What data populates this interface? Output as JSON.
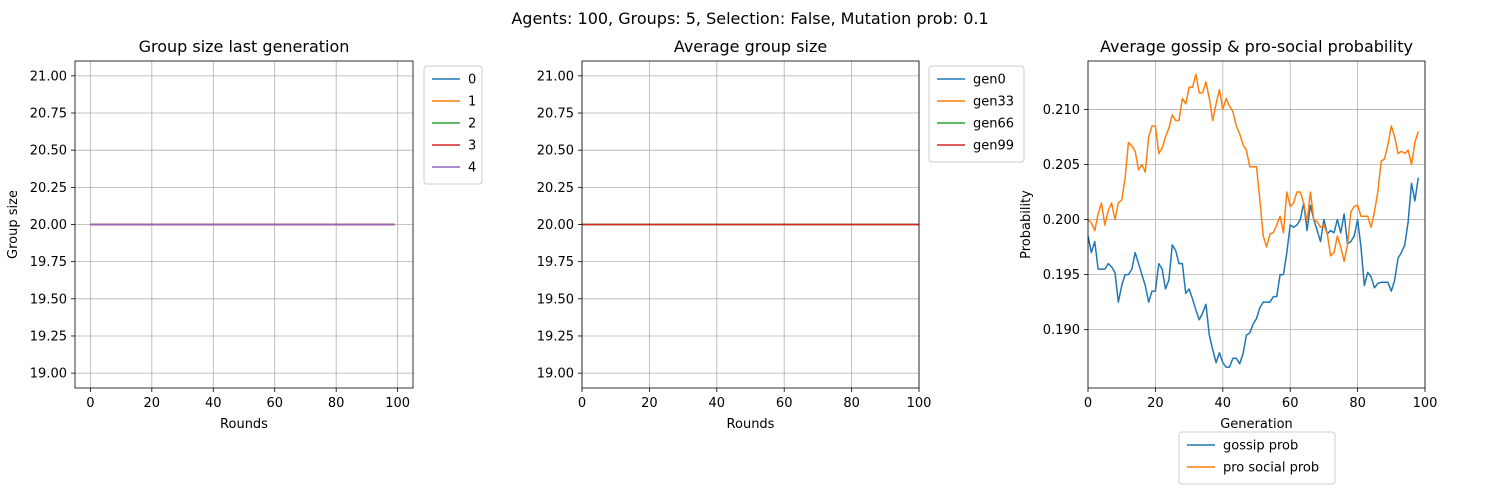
{
  "suptitle": "Agents: 100, Groups: 5, Selection: False, Mutation prob: 0.1",
  "colors": {
    "c0": "#1f77b4",
    "c1": "#ff7f0e",
    "c2": "#2ca02c",
    "c3": "#d62728",
    "c4": "#9467bd"
  },
  "chart_data": [
    {
      "type": "line",
      "title": "Group size last generation",
      "xlabel": "Rounds",
      "ylabel": "Group size",
      "xlim": [
        -5,
        105
      ],
      "ylim": [
        18.9,
        21.1
      ],
      "xticks": [
        0,
        20,
        40,
        60,
        80,
        100
      ],
      "yticks": [
        19.0,
        19.25,
        19.5,
        19.75,
        20.0,
        20.25,
        20.5,
        20.75,
        21.0
      ],
      "grid": true,
      "legend": "outside-right",
      "series": [
        {
          "name": "0",
          "x": [
            0,
            99
          ],
          "values": [
            20,
            20
          ]
        },
        {
          "name": "1",
          "x": [
            0,
            99
          ],
          "values": [
            20,
            20
          ]
        },
        {
          "name": "2",
          "x": [
            0,
            99
          ],
          "values": [
            20,
            20
          ]
        },
        {
          "name": "3",
          "x": [
            0,
            99
          ],
          "values": [
            20,
            20
          ]
        },
        {
          "name": "4",
          "x": [
            0,
            99
          ],
          "values": [
            20,
            20
          ]
        }
      ]
    },
    {
      "type": "line",
      "title": "Average group size",
      "xlabel": "Rounds",
      "ylabel": "",
      "xlim": [
        0,
        100
      ],
      "ylim": [
        18.9,
        21.1
      ],
      "xticks": [
        0,
        20,
        40,
        60,
        80,
        100
      ],
      "yticks": [
        19.0,
        19.25,
        19.5,
        19.75,
        20.0,
        20.25,
        20.5,
        20.75,
        21.0
      ],
      "grid": true,
      "legend": "outside-right",
      "series": [
        {
          "name": "gen0",
          "x": [
            0,
            100
          ],
          "values": [
            20,
            20
          ]
        },
        {
          "name": "gen33",
          "x": [
            0,
            100
          ],
          "values": [
            20,
            20
          ]
        },
        {
          "name": "gen66",
          "x": [
            0,
            100
          ],
          "values": [
            20,
            20
          ]
        },
        {
          "name": "gen99",
          "x": [
            0,
            100
          ],
          "values": [
            20,
            20
          ]
        }
      ]
    },
    {
      "type": "line",
      "title": "Average gossip & pro-social probability",
      "xlabel": "Generation",
      "ylabel": "Probability",
      "xlim": [
        0,
        100
      ],
      "ylim": [
        0.1847,
        0.2144
      ],
      "xticks": [
        0,
        20,
        40,
        60,
        80,
        100
      ],
      "yticks": [
        0.19,
        0.195,
        0.2,
        0.205,
        0.21
      ],
      "grid": true,
      "legend": "below",
      "series": [
        {
          "name": "gossip prob",
          "values": [
            0.1985,
            0.197,
            0.198,
            0.1955,
            0.1955,
            0.1955,
            0.196,
            0.1957,
            0.1952,
            0.1925,
            0.194,
            0.195,
            0.195,
            0.1955,
            0.197,
            0.196,
            0.195,
            0.194,
            0.1925,
            0.1935,
            0.1935,
            0.196,
            0.1955,
            0.1937,
            0.1945,
            0.1977,
            0.1972,
            0.196,
            0.196,
            0.1933,
            0.1937,
            0.1928,
            0.1918,
            0.1909,
            0.1915,
            0.1923,
            0.1895,
            0.1882,
            0.187,
            0.1879,
            0.187,
            0.1866,
            0.1866,
            0.1874,
            0.1874,
            0.1869,
            0.1878,
            0.1895,
            0.1897,
            0.1905,
            0.191,
            0.192,
            0.1925,
            0.1925,
            0.1925,
            0.193,
            0.193,
            0.195,
            0.195,
            0.197,
            0.1995,
            0.1993,
            0.1995,
            0.2,
            0.2015,
            0.199,
            0.2013,
            0.2,
            0.199,
            0.198,
            0.2,
            0.1987,
            0.199,
            0.1988,
            0.2,
            0.1988,
            0.2005,
            0.1978,
            0.198,
            0.1985,
            0.2,
            0.1975,
            0.194,
            0.1952,
            0.1948,
            0.1938,
            0.1942,
            0.1943,
            0.1943,
            0.1943,
            0.1935,
            0.1945,
            0.1965,
            0.197,
            0.1977,
            0.1998,
            0.2033,
            0.2017,
            0.2038
          ]
        },
        {
          "name": "pro social prob",
          "values": [
            0.2,
            0.1997,
            0.199,
            0.2005,
            0.2015,
            0.1995,
            0.2008,
            0.2015,
            0.2,
            0.2015,
            0.2018,
            0.2037,
            0.207,
            0.2067,
            0.2062,
            0.2045,
            0.205,
            0.2043,
            0.2075,
            0.2085,
            0.2085,
            0.206,
            0.2065,
            0.2075,
            0.2083,
            0.2095,
            0.209,
            0.209,
            0.211,
            0.2105,
            0.212,
            0.212,
            0.2132,
            0.2115,
            0.2115,
            0.2125,
            0.211,
            0.209,
            0.2105,
            0.2118,
            0.21,
            0.211,
            0.2103,
            0.2098,
            0.2085,
            0.2078,
            0.2068,
            0.2063,
            0.2048,
            0.2048,
            0.2048,
            0.2018,
            0.1985,
            0.1975,
            0.1987,
            0.1988,
            0.1995,
            0.2003,
            0.1988,
            0.2025,
            0.2012,
            0.2015,
            0.2025,
            0.2025,
            0.2015,
            0.1998,
            0.2025,
            0.2,
            0.1998,
            0.1993,
            0.1995,
            0.1987,
            0.1967,
            0.197,
            0.1985,
            0.1975,
            0.1962,
            0.1977,
            0.2007,
            0.2012,
            0.2013,
            0.2003,
            0.2003,
            0.2003,
            0.1993,
            0.2007,
            0.2025,
            0.2053,
            0.2055,
            0.2068,
            0.2085,
            0.2075,
            0.206,
            0.2062,
            0.206,
            0.2063,
            0.205,
            0.207,
            0.208
          ]
        }
      ]
    }
  ]
}
